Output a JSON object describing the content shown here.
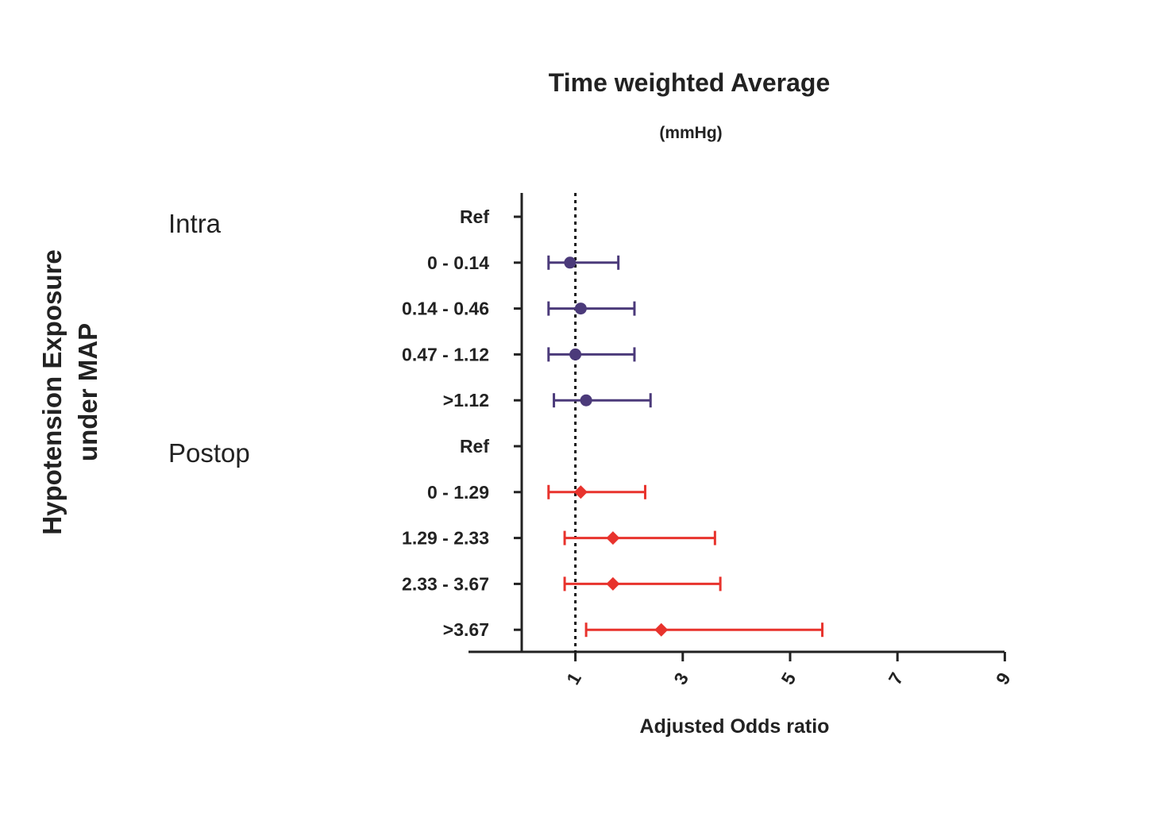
{
  "chart_data": {
    "type": "forest",
    "title": "Time weighted Average",
    "subtitle": "(mmHg)",
    "xlabel": "Adjusted Odds ratio",
    "ylabel_lines": [
      "Hypotension Exposure",
      "under MAP"
    ],
    "xlim": [
      0,
      9
    ],
    "xticks": [
      1,
      3,
      5,
      7,
      9
    ],
    "reference_line": 1,
    "colors": {
      "intra": "#4b3a7a",
      "postop": "#e8332d",
      "axis": "#222222"
    },
    "groups": [
      {
        "name": "Intra",
        "marker": "circle",
        "color_key": "intra",
        "rows": [
          {
            "label": "Ref",
            "or": null,
            "lo": null,
            "hi": null
          },
          {
            "label": "0 - 0.14",
            "or": 0.9,
            "lo": 0.5,
            "hi": 1.8
          },
          {
            "label": "0.14 - 0.46",
            "or": 1.1,
            "lo": 0.5,
            "hi": 2.1
          },
          {
            "label": "0.47 - 1.12",
            "or": 1.0,
            "lo": 0.5,
            "hi": 2.1
          },
          {
            "label": ">1.12",
            "or": 1.2,
            "lo": 0.6,
            "hi": 2.4
          }
        ]
      },
      {
        "name": "Postop",
        "marker": "diamond",
        "color_key": "postop",
        "rows": [
          {
            "label": "Ref",
            "or": null,
            "lo": null,
            "hi": null
          },
          {
            "label": "0 - 1.29",
            "or": 1.1,
            "lo": 0.5,
            "hi": 2.3
          },
          {
            "label": "1.29 - 2.33",
            "or": 1.7,
            "lo": 0.8,
            "hi": 3.6
          },
          {
            "label": "2.33 - 3.67",
            "or": 1.7,
            "lo": 0.8,
            "hi": 3.7
          },
          {
            "label": ">3.67",
            "or": 2.6,
            "lo": 1.2,
            "hi": 5.6
          }
        ]
      }
    ]
  }
}
